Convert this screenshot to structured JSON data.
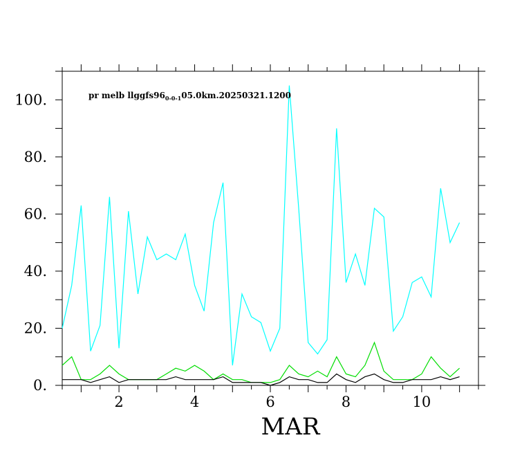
{
  "chart_data": {
    "type": "line",
    "annotation": {
      "prefix": "pr melb llggfs96",
      "subscript": "0-0-1",
      "suffix": "05.0km.20250321.1200"
    },
    "xlabel": "MAR",
    "ylabel": "",
    "xlim": [
      0.5,
      11.5
    ],
    "ylim": [
      0,
      110
    ],
    "x_ticks": [
      2,
      4,
      6,
      8,
      10
    ],
    "x_tick_labels": [
      "2",
      "4",
      "6",
      "8",
      "10"
    ],
    "y_ticks": [
      0,
      20,
      40,
      60,
      80,
      100
    ],
    "y_tick_labels": [
      "0.",
      "20.",
      "40.",
      "60.",
      "80.",
      "100."
    ],
    "grid": false,
    "x": [
      0.5,
      0.75,
      1.0,
      1.25,
      1.5,
      1.75,
      2.0,
      2.25,
      2.5,
      2.75,
      3.0,
      3.25,
      3.5,
      3.75,
      4.0,
      4.25,
      4.5,
      4.75,
      5.0,
      5.25,
      5.5,
      5.75,
      6.0,
      6.25,
      6.5,
      6.75,
      7.0,
      7.25,
      7.5,
      7.75,
      8.0,
      8.25,
      8.5,
      8.75,
      9.0,
      9.25,
      9.5,
      9.75,
      10.0,
      10.25,
      10.5,
      10.75,
      11.0
    ],
    "series": [
      {
        "color": "#00ffff",
        "values": [
          20,
          35,
          63,
          12,
          21,
          66,
          13,
          61,
          32,
          52,
          44,
          46,
          44,
          53,
          35,
          26,
          57,
          71,
          7,
          32,
          24,
          22,
          12,
          20,
          105,
          62,
          15,
          11,
          16,
          90,
          36,
          46,
          35,
          62,
          59,
          19,
          24,
          36,
          38,
          31,
          69,
          50,
          57
        ]
      },
      {
        "color": "#00dd00",
        "values": [
          7,
          10,
          2,
          2,
          4,
          7,
          4,
          2,
          2,
          2,
          2,
          4,
          6,
          5,
          7,
          5,
          2,
          4,
          2,
          2,
          1,
          1,
          1,
          2,
          7,
          4,
          3,
          5,
          3,
          10,
          4,
          3,
          7,
          15,
          5,
          2,
          2,
          2,
          4,
          10,
          6,
          3,
          6
        ]
      },
      {
        "color": "#000000",
        "values": [
          2,
          2,
          2,
          1,
          2,
          3,
          1,
          2,
          2,
          2,
          2,
          2,
          3,
          2,
          2,
          2,
          2,
          3,
          1,
          1,
          1,
          1,
          0,
          1,
          3,
          2,
          2,
          1,
          1,
          4,
          2,
          1,
          3,
          4,
          2,
          1,
          1,
          2,
          2,
          2,
          3,
          2,
          3
        ]
      }
    ]
  }
}
